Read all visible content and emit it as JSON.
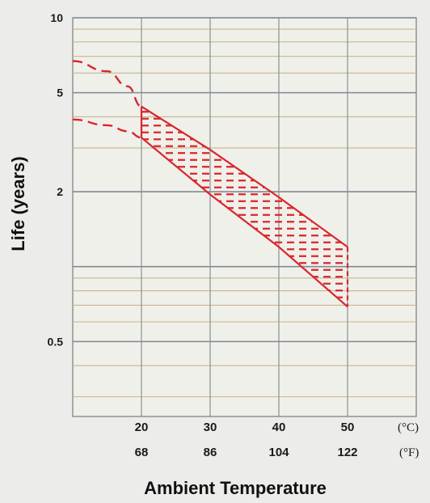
{
  "chart_data": {
    "type": "area",
    "title": "",
    "xlabel": "Ambient Temperature",
    "ylabel": "Life (years)",
    "y_scale": "log",
    "ylim": [
      0.25,
      10
    ],
    "xlim_celsius": [
      10,
      50
    ],
    "grid": true,
    "y_ticks": [
      {
        "value": 10,
        "label": "10"
      },
      {
        "value": 5,
        "label": "5"
      },
      {
        "value": 2,
        "label": "2"
      },
      {
        "value": 0.5,
        "label": "0.5"
      }
    ],
    "x_ticks_celsius": [
      {
        "value": 20,
        "label": "20"
      },
      {
        "value": 30,
        "label": "30"
      },
      {
        "value": 40,
        "label": "40"
      },
      {
        "value": 50,
        "label": "50"
      }
    ],
    "x_ticks_fahrenheit": [
      "68",
      "86",
      "104",
      "122"
    ],
    "unit_celsius": "(°C)",
    "unit_fahrenheit": "(°F)",
    "band_color": "#d9262c",
    "grid_color": "#c7b58f",
    "series": [
      {
        "role": "upper-bound",
        "points": [
          [
            20,
            4.4
          ],
          [
            30,
            2.95
          ],
          [
            40,
            1.9
          ],
          [
            50,
            1.2
          ]
        ],
        "extrapolated": [
          [
            10,
            6.7
          ],
          [
            15,
            6.1
          ],
          [
            18,
            5.3
          ],
          [
            20,
            4.4
          ]
        ]
      },
      {
        "role": "lower-bound",
        "points": [
          [
            20,
            3.3
          ],
          [
            30,
            1.95
          ],
          [
            40,
            1.2
          ],
          [
            50,
            0.69
          ]
        ],
        "extrapolated": [
          [
            10,
            3.9
          ],
          [
            15,
            3.7
          ],
          [
            18,
            3.5
          ],
          [
            20,
            3.3
          ]
        ]
      }
    ]
  }
}
